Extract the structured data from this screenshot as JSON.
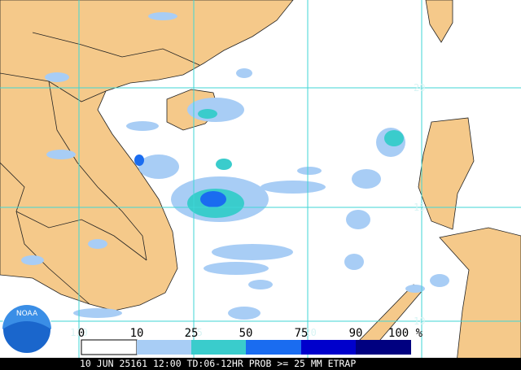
{
  "map": {
    "lat_labels": [
      "20",
      "15",
      "10"
    ],
    "lon_labels": [
      "110",
      "115",
      "120"
    ],
    "legend": {
      "labels": [
        "0",
        "10",
        "25",
        "50",
        "75",
        "90",
        "100 %"
      ]
    },
    "footer": "10 JUN 25161 12:00 TD:06-12HR PROB >= 25 MM ETRAP",
    "logo": "NOAA"
  }
}
